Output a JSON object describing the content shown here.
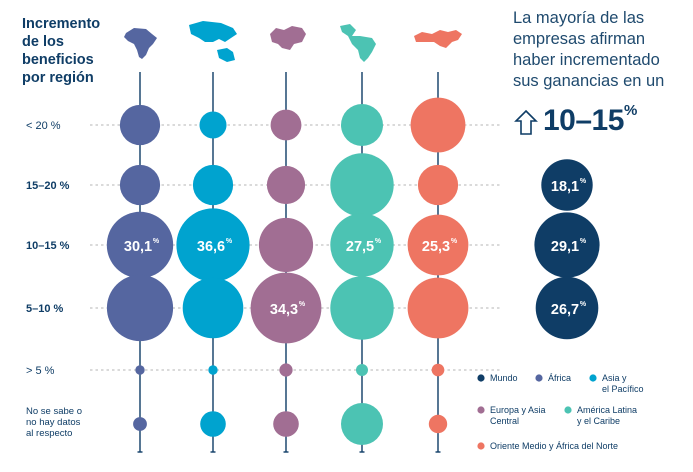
{
  "title": [
    "Incremento",
    "de los",
    "beneficios",
    "por región"
  ],
  "headline": "La mayoría de las empresas afirman haber incrementado sus ganancias en un",
  "highlight": {
    "value": "10–15",
    "unit": "%"
  },
  "colors": {
    "Mundo": "#0f3d66",
    "Africa": "#5566a0",
    "Asia": "#00a3cf",
    "Europa": "#a16e93",
    "America": "#4cc3b3",
    "Oriente": "#ee7562",
    "text": "#0f3d66",
    "stem": "#0f3d66",
    "dash": "#b5b5b5"
  },
  "icons": [
    "africa-map-icon",
    "asia-pacific-map-icon",
    "europe-central-asia-map-icon",
    "latin-america-map-icon",
    "middle-east-north-africa-map-icon"
  ],
  "chart_data": {
    "type": "bubble-matrix",
    "categories": [
      "< 20 %",
      "15–20 %",
      "10–15 %",
      "5–10 %",
      "> 5 %",
      "No se sabe o no hay datos al respecto"
    ],
    "category_bold": [
      false,
      true,
      true,
      true,
      false,
      false
    ],
    "series": [
      {
        "name": "África",
        "key": "Africa",
        "values": [
          11,
          11,
          30.1,
          30,
          0.6,
          1.3
        ]
      },
      {
        "name": "Asia y el Pacífico",
        "key": "Asia",
        "values": [
          5,
          11,
          36.6,
          25,
          0.6,
          4.5
        ]
      },
      {
        "name": "Europa y Asia Central",
        "key": "Europa",
        "values": [
          6.5,
          10,
          20,
          34.3,
          1.2,
          4.5
        ]
      },
      {
        "name": "América Latina y el Caribe",
        "key": "America",
        "values": [
          12,
          27.5,
          27.5,
          27.5,
          1,
          12
        ]
      },
      {
        "name": "Oriente Medio y África del Norte",
        "key": "Oriente",
        "values": [
          20.5,
          11,
          25.3,
          25.3,
          1.1,
          2.3
        ]
      },
      {
        "name": "Mundo",
        "key": "Mundo",
        "values": [
          null,
          18.1,
          29.1,
          26.7,
          null,
          null
        ]
      }
    ],
    "labels": [
      {
        "series": "Africa",
        "row": 2,
        "text": "30,1"
      },
      {
        "series": "Asia",
        "row": 2,
        "text": "36,6"
      },
      {
        "series": "Europa",
        "row": 3,
        "text": "34,3"
      },
      {
        "series": "America",
        "row": 2,
        "text": "27,5"
      },
      {
        "series": "Oriente",
        "row": 2,
        "text": "25,3"
      },
      {
        "series": "Mundo",
        "row": 1,
        "text": "18,1"
      },
      {
        "series": "Mundo",
        "row": 2,
        "text": "29,1"
      },
      {
        "series": "Mundo",
        "row": 3,
        "text": "26,7"
      }
    ],
    "label_unit": "%",
    "legend": [
      "Mundo",
      "África",
      "Asia y el Pacífico",
      "Europa y Asia Central",
      "América Latina y el Caribe",
      "Oriente Medio y África del Norte"
    ],
    "legend_placement": "bottom-right"
  }
}
